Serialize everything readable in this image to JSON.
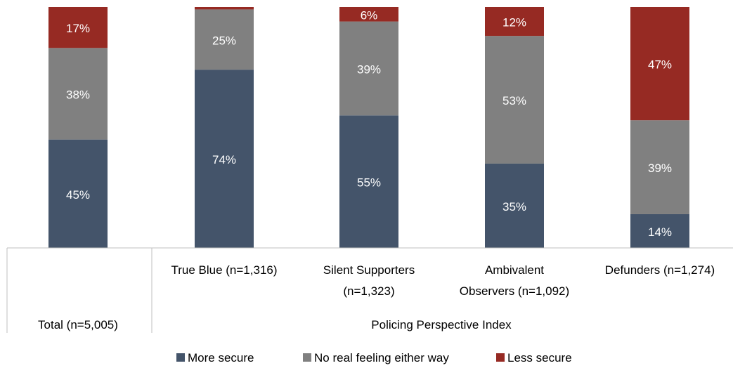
{
  "chart_data": {
    "type": "bar",
    "stacked": true,
    "percent_stacked": true,
    "ylim": [
      0,
      100
    ],
    "grid": false,
    "legend_position": "bottom",
    "categories": [
      "Total (n=5,005)",
      "True Blue (n=1,316)",
      "Silent Supporters (n=1,323)",
      "Ambivalent Observers (n=1,092)",
      "Defunders (n=1,274)"
    ],
    "group_label": "Policing Perspective Index",
    "series": [
      {
        "name": "More secure",
        "color": "#44546a",
        "values": [
          45,
          74,
          55,
          35,
          14
        ]
      },
      {
        "name": "No real feeling either way",
        "color": "#808080",
        "values": [
          38,
          25,
          39,
          53,
          39
        ]
      },
      {
        "name": "Less secure",
        "color": "#962a23",
        "values": [
          17,
          1,
          6,
          12,
          47
        ]
      }
    ],
    "data_labels": [
      [
        "45%",
        "74%",
        "55%",
        "35%",
        "14%"
      ],
      [
        "38%",
        "25%",
        "39%",
        "53%",
        "39%"
      ],
      [
        "17%",
        "",
        "6%",
        "12%",
        "47%"
      ]
    ]
  }
}
